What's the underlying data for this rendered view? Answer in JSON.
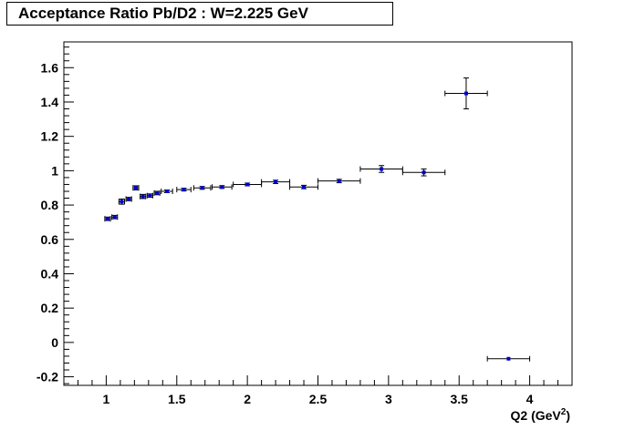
{
  "chart_data": {
    "type": "scatter",
    "title": "Acceptance Ratio Pb/D2 : W=2.225 GeV",
    "xlabel": "Q2 (GeV",
    "xlabel_sup": "2",
    "xlabel_close": ")",
    "ylabel": "",
    "xlim": [
      0.7,
      4.3
    ],
    "ylim": [
      -0.25,
      1.75
    ],
    "x_ticks": [
      1,
      1.5,
      2,
      2.5,
      3,
      3.5,
      4
    ],
    "x_tick_labels": [
      "1",
      "1.5",
      "2",
      "2.5",
      "3",
      "3.5",
      "4"
    ],
    "y_ticks": [
      -0.2,
      0,
      0.2,
      0.4,
      0.6,
      0.8,
      1,
      1.2,
      1.4,
      1.6
    ],
    "y_tick_labels": [
      "-0.2",
      "0",
      "0.2",
      "0.4",
      "0.6",
      "0.8",
      "1",
      "1.2",
      "1.4",
      "1.6"
    ],
    "grid": false,
    "marker_color": "#0000cc",
    "points": [
      {
        "x": 1.01,
        "y": 0.72,
        "xerr": 0.02,
        "yerr": 0.01
      },
      {
        "x": 1.06,
        "y": 0.73,
        "xerr": 0.02,
        "yerr": 0.01
      },
      {
        "x": 1.11,
        "y": 0.82,
        "xerr": 0.02,
        "yerr": 0.015
      },
      {
        "x": 1.16,
        "y": 0.835,
        "xerr": 0.02,
        "yerr": 0.01
      },
      {
        "x": 1.21,
        "y": 0.9,
        "xerr": 0.02,
        "yerr": 0.012
      },
      {
        "x": 1.26,
        "y": 0.85,
        "xerr": 0.02,
        "yerr": 0.012
      },
      {
        "x": 1.31,
        "y": 0.855,
        "xerr": 0.02,
        "yerr": 0.01
      },
      {
        "x": 1.36,
        "y": 0.87,
        "xerr": 0.02,
        "yerr": 0.01
      },
      {
        "x": 1.43,
        "y": 0.88,
        "xerr": 0.04,
        "yerr": 0.008
      },
      {
        "x": 1.55,
        "y": 0.89,
        "xerr": 0.05,
        "yerr": 0.008
      },
      {
        "x": 1.68,
        "y": 0.9,
        "xerr": 0.06,
        "yerr": 0.008
      },
      {
        "x": 1.82,
        "y": 0.905,
        "xerr": 0.07,
        "yerr": 0.008
      },
      {
        "x": 2.0,
        "y": 0.92,
        "xerr": 0.1,
        "yerr": 0.008
      },
      {
        "x": 2.2,
        "y": 0.935,
        "xerr": 0.1,
        "yerr": 0.01
      },
      {
        "x": 2.4,
        "y": 0.905,
        "xerr": 0.1,
        "yerr": 0.01
      },
      {
        "x": 2.65,
        "y": 0.94,
        "xerr": 0.15,
        "yerr": 0.01
      },
      {
        "x": 2.95,
        "y": 1.01,
        "xerr": 0.15,
        "yerr": 0.02
      },
      {
        "x": 3.25,
        "y": 0.99,
        "xerr": 0.15,
        "yerr": 0.02
      },
      {
        "x": 3.55,
        "y": 1.45,
        "xerr": 0.15,
        "yerr": 0.09
      },
      {
        "x": 3.85,
        "y": -0.095,
        "xerr": 0.15,
        "yerr": 0.005
      }
    ]
  }
}
